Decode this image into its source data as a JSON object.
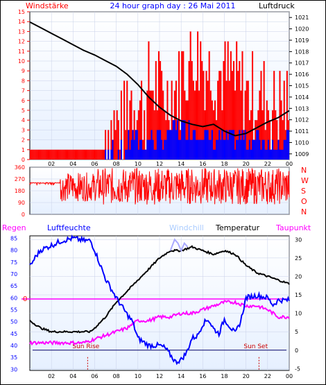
{
  "header": {
    "left": "Windstärke",
    "center": "24 hour graph day : 26 Mai 2011",
    "right": "Luftdruck"
  },
  "labels": {
    "regen": "Regen",
    "luftfeuchte": "Luftfeuchte",
    "windchill": "Windchill",
    "temperatur": "Temperatur",
    "taupunkt": "Taupunkt",
    "sunrise": "Sun Rise",
    "sunset": "Sun Set",
    "zero": "0"
  },
  "colors": {
    "wind_gust": "#ff0000",
    "wind_avg": "#0000ff",
    "pressure": "#000000",
    "direction": "#ff0000",
    "humidity": "#0000ff",
    "temperature": "#000000",
    "dewpoint": "#ff00ff",
    "windchill": "#aaaaff",
    "header": "#0000ff",
    "axis_red": "#ff0000",
    "plot_bg_top": "#ffffff",
    "plot_bg_bottom": "#e6f0ff"
  },
  "chart_data": [
    {
      "type": "bar",
      "name": "wind-pressure",
      "x_ticks": [
        "02",
        "04",
        "06",
        "08",
        "10",
        "12",
        "14",
        "16",
        "18",
        "20",
        "22",
        "00"
      ],
      "y_left_ticks": [
        "0",
        "1",
        "2",
        "3",
        "4",
        "5",
        "6",
        "7",
        "8",
        "9",
        "10",
        "11",
        "12",
        "13",
        "14",
        "15"
      ],
      "y_right_ticks": [
        "1009",
        "1010",
        "1011",
        "1012",
        "1013",
        "1014",
        "1015",
        "1016",
        "1017",
        "1018",
        "1019",
        "1020",
        "1021"
      ],
      "ylim_left": [
        0,
        15
      ],
      "ylim_right": [
        1008.5,
        1021.5
      ],
      "xlim_hours": [
        0,
        24
      ],
      "gust_hourly": [
        1,
        1,
        1,
        1,
        1,
        1,
        1,
        3,
        3,
        6,
        5,
        7,
        6,
        7,
        9,
        10,
        9,
        8,
        8,
        7,
        6,
        6,
        5,
        5
      ],
      "avg_hourly": [
        0,
        0,
        0,
        0,
        0,
        0,
        0,
        1,
        1,
        2,
        2,
        2,
        2,
        3,
        3,
        3,
        2,
        2,
        2,
        2,
        2,
        2,
        2,
        2
      ],
      "pressure": [
        [
          0,
          1020.6
        ],
        [
          1,
          1020.1
        ],
        [
          2,
          1019.6
        ],
        [
          3,
          1019.1
        ],
        [
          4,
          1018.6
        ],
        [
          5,
          1018.1
        ],
        [
          6,
          1017.7
        ],
        [
          7,
          1017.2
        ],
        [
          8,
          1016.7
        ],
        [
          9,
          1016.0
        ],
        [
          10,
          1015.1
        ],
        [
          11,
          1014.0
        ],
        [
          12,
          1013.1
        ],
        [
          13,
          1012.4
        ],
        [
          14,
          1011.9
        ],
        [
          15,
          1011.6
        ],
        [
          16,
          1011.4
        ],
        [
          17,
          1011.6
        ],
        [
          18,
          1011.0
        ],
        [
          19,
          1010.6
        ],
        [
          20,
          1010.8
        ],
        [
          21,
          1011.3
        ],
        [
          22,
          1011.8
        ],
        [
          23,
          1012.2
        ],
        [
          24,
          1012.8
        ]
      ]
    },
    {
      "type": "line",
      "name": "wind-direction",
      "y_left_ticks": [
        "0",
        "90",
        "180",
        "270",
        "360"
      ],
      "y_right_ticks": [
        "N",
        "W",
        "S",
        "O",
        "N"
      ],
      "ylim": [
        0,
        360
      ],
      "segments": [
        {
          "from": 0,
          "to": 2.8,
          "base": 240,
          "spread": 25
        },
        {
          "from": 2.8,
          "to": 6.2,
          "base": 210,
          "spread": 110
        },
        {
          "from": 6.2,
          "to": 24,
          "base": 215,
          "spread": 140
        }
      ]
    },
    {
      "type": "line",
      "name": "humidity-temperature",
      "y_left_ticks": [
        "30",
        "35",
        "40",
        "45",
        "50",
        "55",
        "60",
        "65",
        "70",
        "75",
        "80",
        "85"
      ],
      "y_right_ticks": [
        "-5",
        "0",
        "5",
        "10",
        "15",
        "20",
        "25",
        "30"
      ],
      "ylim_left": [
        29.5,
        86
      ],
      "ylim_right": [
        -5.5,
        31
      ],
      "humidity": [
        [
          0,
          73
        ],
        [
          0.5,
          77
        ],
        [
          1,
          80
        ],
        [
          2,
          82
        ],
        [
          3,
          84
        ],
        [
          4,
          85
        ],
        [
          5,
          84
        ],
        [
          5.6,
          84
        ],
        [
          6,
          80
        ],
        [
          7,
          68
        ],
        [
          8,
          60
        ],
        [
          9,
          53
        ],
        [
          9.5,
          50
        ],
        [
          10,
          43
        ],
        [
          11,
          40
        ],
        [
          12,
          40
        ],
        [
          12.5,
          39
        ],
        [
          13,
          36
        ],
        [
          13.5,
          33
        ],
        [
          14,
          34
        ],
        [
          14.5,
          37
        ],
        [
          15,
          43
        ],
        [
          15.5,
          44
        ],
        [
          16,
          49
        ],
        [
          16.5,
          51
        ],
        [
          17,
          47
        ],
        [
          17.5,
          45
        ],
        [
          18,
          51
        ],
        [
          18.5,
          48
        ],
        [
          19,
          45
        ],
        [
          19.5,
          50
        ],
        [
          20,
          60
        ],
        [
          21,
          61
        ],
        [
          22,
          60
        ],
        [
          22.5,
          57
        ],
        [
          23,
          59
        ],
        [
          24,
          59
        ]
      ],
      "temperature": [
        [
          0,
          8
        ],
        [
          1,
          6
        ],
        [
          2,
          5
        ],
        [
          3,
          5
        ],
        [
          4,
          5
        ],
        [
          5,
          5
        ],
        [
          5.6,
          5
        ],
        [
          6,
          6
        ],
        [
          7,
          9
        ],
        [
          8,
          13
        ],
        [
          9,
          16
        ],
        [
          10,
          19
        ],
        [
          11,
          22
        ],
        [
          12,
          25
        ],
        [
          13,
          27
        ],
        [
          14,
          27
        ],
        [
          15,
          28
        ],
        [
          16,
          27
        ],
        [
          17,
          26
        ],
        [
          18,
          27
        ],
        [
          19,
          26
        ],
        [
          20,
          23
        ],
        [
          21,
          21
        ],
        [
          22,
          20
        ],
        [
          23,
          19
        ],
        [
          24,
          18
        ]
      ],
      "dewpoint": [
        [
          0,
          2
        ],
        [
          1,
          2
        ],
        [
          2,
          2
        ],
        [
          3,
          2
        ],
        [
          4,
          2
        ],
        [
          5,
          2
        ],
        [
          6,
          3
        ],
        [
          7,
          4
        ],
        [
          8,
          5
        ],
        [
          9,
          6
        ],
        [
          10,
          8
        ],
        [
          11,
          8
        ],
        [
          12,
          9
        ],
        [
          13,
          9
        ],
        [
          14,
          10
        ],
        [
          15,
          10
        ],
        [
          16,
          11
        ],
        [
          17,
          12
        ],
        [
          18,
          13
        ],
        [
          19,
          13
        ],
        [
          20,
          12
        ],
        [
          21,
          12
        ],
        [
          22,
          11
        ],
        [
          23,
          9
        ],
        [
          24,
          9
        ]
      ],
      "windchill": [
        [
          13,
          27
        ],
        [
          13.4,
          30
        ],
        [
          13.7,
          29
        ],
        [
          14,
          27
        ],
        [
          14.3,
          29
        ],
        [
          14.6,
          28
        ]
      ],
      "sunrise_hour": 5.35,
      "sunset_hour": 21.2
    }
  ]
}
